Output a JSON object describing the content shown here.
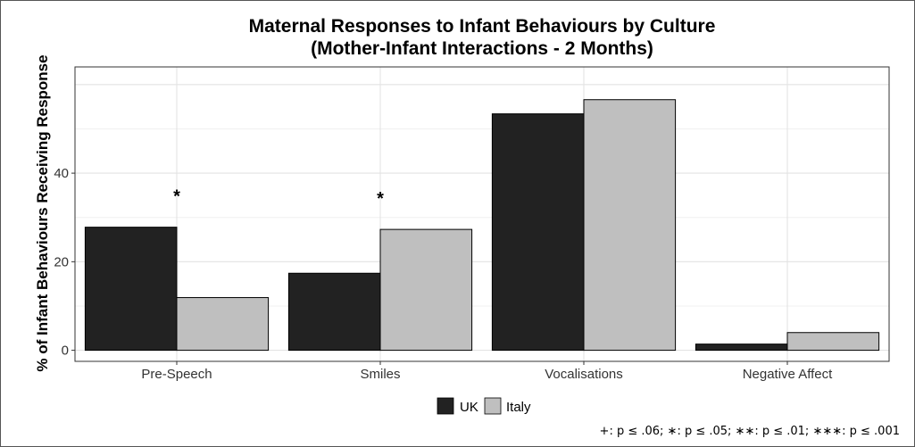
{
  "chart_data": {
    "type": "bar",
    "title": [
      "Maternal Responses to Infant Behaviours by Culture",
      "(Mother-Infant Interactions - 2 Months)"
    ],
    "xlabel": "",
    "ylabel": "% of Infant Behaviours Receiving Response",
    "categories": [
      "Pre-Speech",
      "Smiles",
      "Vocalisations",
      "Negative Affect"
    ],
    "series": [
      {
        "name": "UK",
        "values": [
          27.8,
          17.4,
          53.4,
          1.4
        ],
        "color": "#222222"
      },
      {
        "name": "Italy",
        "values": [
          11.9,
          27.3,
          56.6,
          4.0
        ],
        "color": "#bfbfbf"
      }
    ],
    "yticks": [
      0,
      20,
      40
    ],
    "ylim": [
      -2.5,
      64
    ],
    "grid": true,
    "legend_position": "bottom",
    "significance": [
      "*",
      "*",
      "",
      ""
    ],
    "footnote": "+: p ≤ .06; ∗: p ≤ .05; ∗∗: p ≤ .01; ∗∗∗: p ≤ .001"
  }
}
